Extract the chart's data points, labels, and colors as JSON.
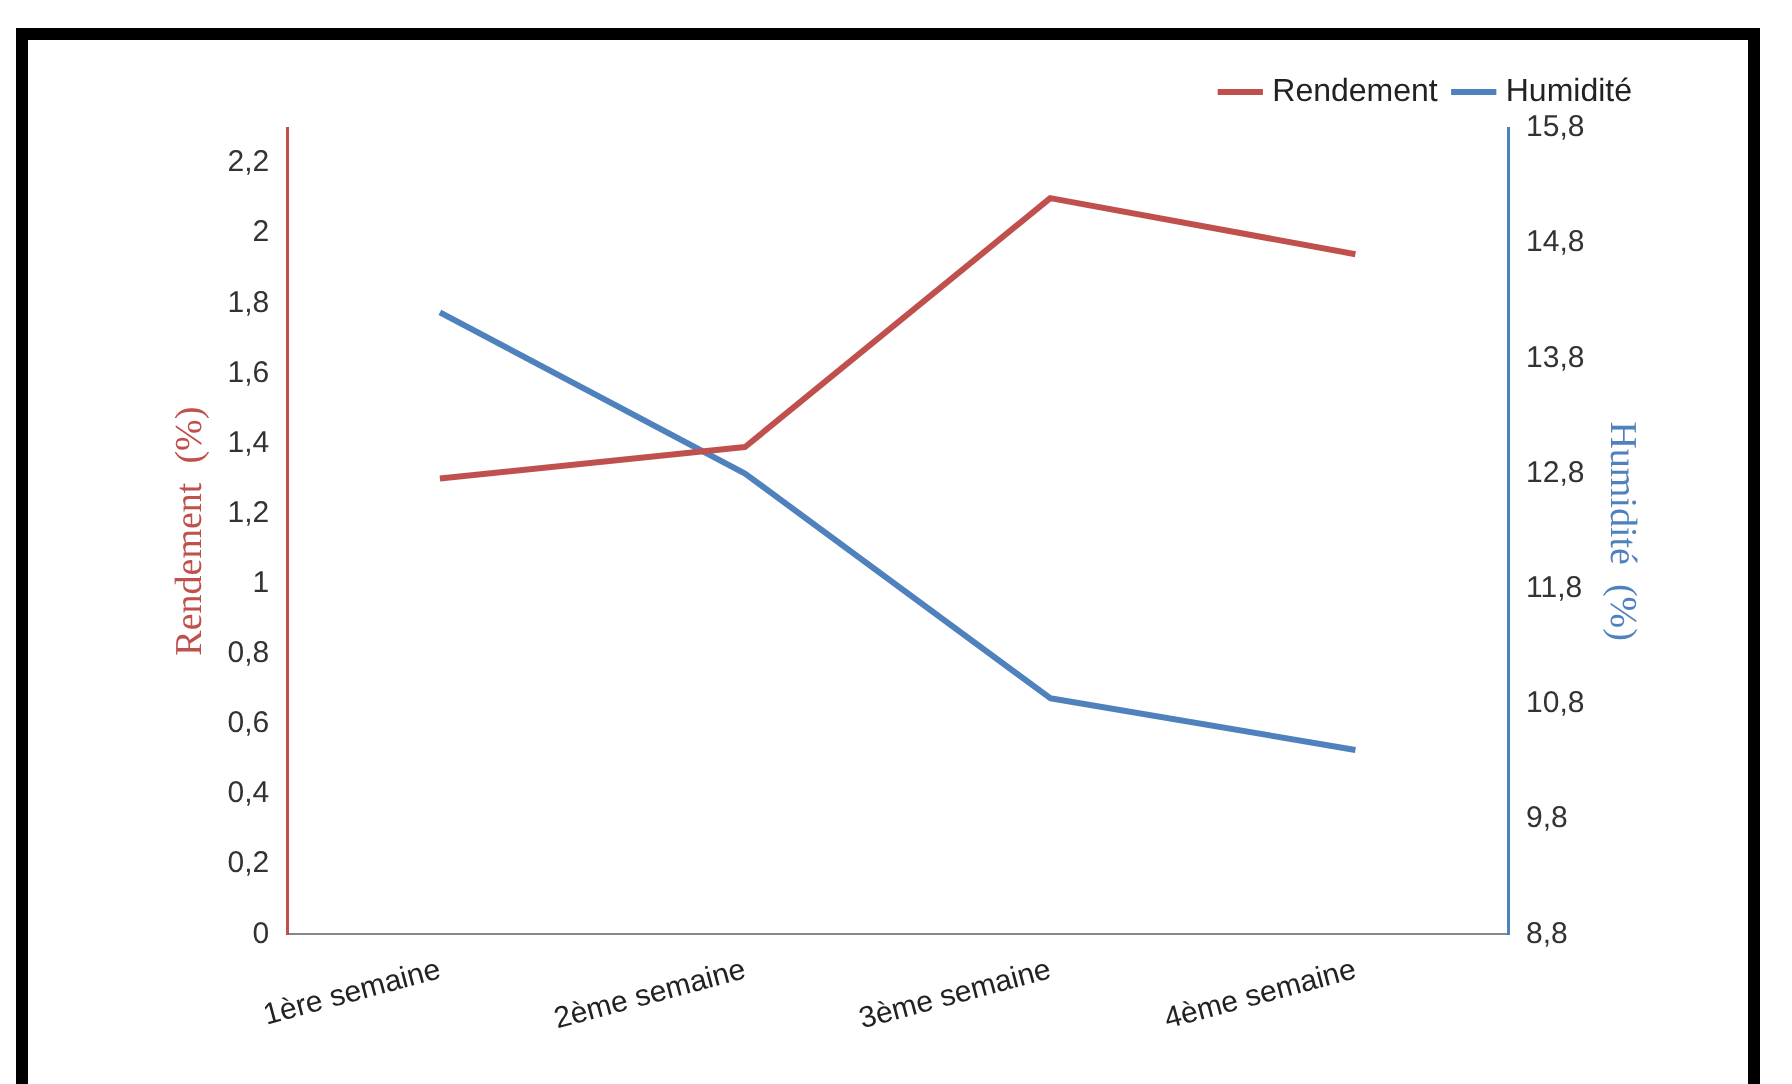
{
  "chart_data": {
    "type": "line",
    "categories": [
      "1ère semaine",
      "2ème semaine",
      "3ème semaine",
      "4ème semaine"
    ],
    "series": [
      {
        "name": "Rendement",
        "color": "#c0504d",
        "values": [
          1.3,
          1.39,
          2.1,
          1.94
        ]
      },
      {
        "name": "Humidité",
        "color": "#4f81bd",
        "values": [
          14.2,
          12.8,
          10.85,
          10.4
        ],
        "axis": "y2"
      }
    ],
    "ylabel": "Rendement  (%)",
    "y2label": "Humidité  (%)",
    "ylim": [
      0,
      2.3
    ],
    "yticks": [
      0,
      {
        "value": 0.2,
        "label": "0,2"
      },
      {
        "value": 0.4,
        "label": "0,4"
      },
      {
        "value": 0.6,
        "label": "0,6"
      },
      {
        "value": 0.8,
        "label": "0,8"
      },
      1,
      {
        "value": 1.2,
        "label": "1,2"
      },
      {
        "value": 1.4,
        "label": "1,4"
      },
      {
        "value": 1.6,
        "label": "1,6"
      },
      {
        "value": 1.8,
        "label": "1,8"
      },
      2,
      {
        "value": 2.2,
        "label": "2,2"
      }
    ],
    "y2lim": [
      8.8,
      15.8
    ],
    "y2ticks": [
      {
        "value": 8.8,
        "label": "8,8"
      },
      {
        "value": 9.8,
        "label": "9,8"
      },
      {
        "value": 10.8,
        "label": "10,8"
      },
      {
        "value": 11.8,
        "label": "11,8"
      },
      {
        "value": 12.8,
        "label": "12,8"
      },
      {
        "value": 13.8,
        "label": "13,8"
      },
      {
        "value": 14.8,
        "label": "14,8"
      },
      {
        "value": 15.8,
        "label": "15,8"
      }
    ],
    "grid": false,
    "legend": "top right",
    "marker": "none",
    "line_style": "solid"
  }
}
